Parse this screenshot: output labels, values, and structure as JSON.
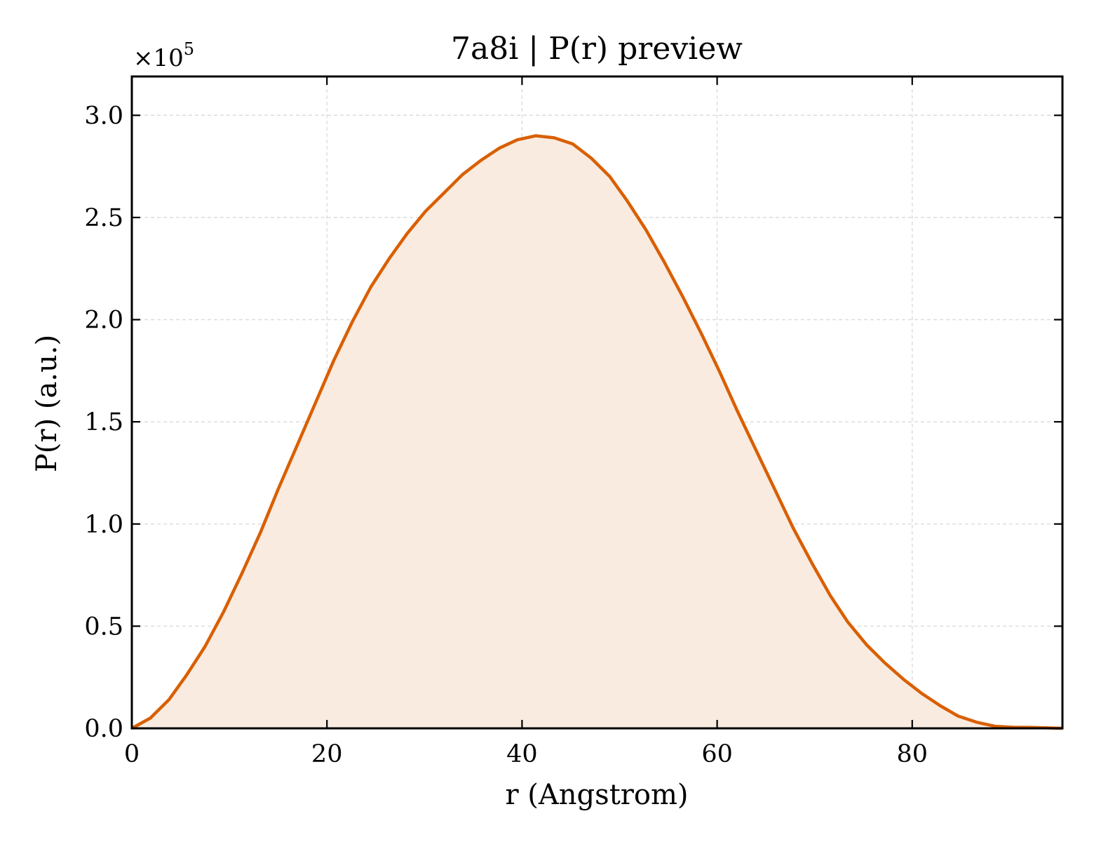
{
  "chart_data": {
    "type": "area",
    "title": "7a8i | P(r) preview",
    "xlabel": "r (Angstrom)",
    "ylabel": "P(r) (a.u.)",
    "y_multiplier": {
      "base": "×10",
      "exponent": "5"
    },
    "xlim": [
      0,
      95.4
    ],
    "ylim": [
      0,
      3.19
    ],
    "y_scale": 100000,
    "xticks": [
      0,
      20,
      40,
      60,
      80
    ],
    "xtick_labels": [
      "0",
      "20",
      "40",
      "60",
      "80"
    ],
    "yticks": [
      0,
      0.5,
      1.0,
      1.5,
      2.0,
      2.5,
      3.0
    ],
    "ytick_labels": [
      "0.0",
      "0.5",
      "1.0",
      "1.5",
      "2.0",
      "2.5",
      "3.0"
    ],
    "grid": true,
    "legend": "none",
    "colors": {
      "line": "#d95f02",
      "fill": "#f9ebe0",
      "grid": "#d9d9d9",
      "axes": "#000000"
    },
    "series": [
      {
        "x": [
          0,
          1.9,
          3.8,
          5.6,
          7.5,
          9.4,
          11.3,
          13.2,
          15.0,
          16.9,
          18.8,
          20.7,
          22.6,
          24.5,
          26.4,
          28.2,
          30.1,
          32.0,
          33.9,
          35.8,
          37.7,
          39.5,
          41.4,
          43.3,
          45.2,
          47.1,
          49.0,
          50.8,
          52.7,
          54.6,
          56.5,
          58.4,
          60.3,
          62.1,
          64.0,
          65.9,
          67.8,
          69.7,
          71.6,
          73.4,
          75.3,
          77.2,
          79.1,
          81.0,
          82.9,
          84.7,
          86.6,
          88.5,
          90.4,
          92.3,
          95.4
        ],
        "y": [
          0.0,
          0.05,
          0.14,
          0.26,
          0.4,
          0.57,
          0.76,
          0.96,
          1.17,
          1.38,
          1.59,
          1.8,
          1.99,
          2.16,
          2.3,
          2.42,
          2.53,
          2.62,
          2.71,
          2.78,
          2.84,
          2.88,
          2.9,
          2.89,
          2.86,
          2.79,
          2.7,
          2.58,
          2.44,
          2.28,
          2.11,
          1.93,
          1.74,
          1.55,
          1.36,
          1.17,
          0.98,
          0.81,
          0.65,
          0.52,
          0.41,
          0.32,
          0.24,
          0.17,
          0.11,
          0.06,
          0.03,
          0.01,
          0.005,
          0.004,
          0.0
        ]
      }
    ]
  }
}
